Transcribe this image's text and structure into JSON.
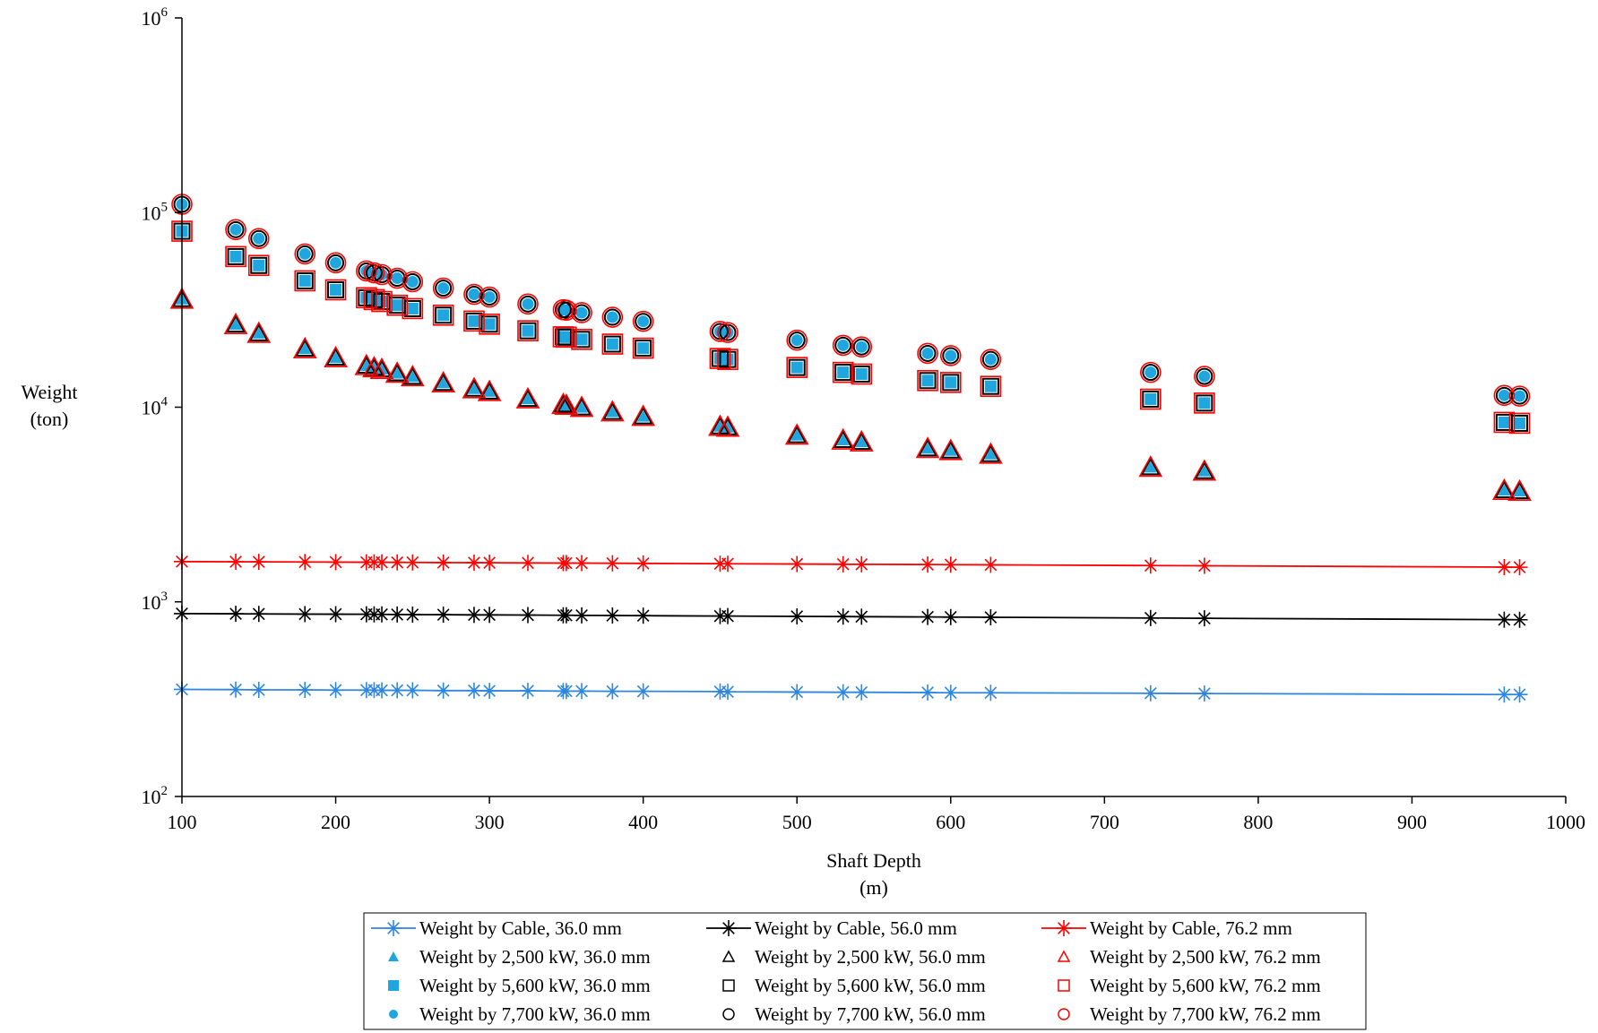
{
  "chart_data": {
    "type": "scatter",
    "xlabel_line1": "Shaft Depth",
    "xlabel_line2": "(m)",
    "ylabel_line1": "Weight",
    "ylabel_line2": "(ton)",
    "xlim": [
      100,
      1000
    ],
    "ylim": [
      100,
      1000000
    ],
    "y_scale": "log",
    "x_ticks": [
      "100",
      "200",
      "300",
      "400",
      "500",
      "600",
      "700",
      "800",
      "900",
      "1000"
    ],
    "y_ticks": [
      {
        "base": "10",
        "exp": "2"
      },
      {
        "base": "10",
        "exp": "3"
      },
      {
        "base": "10",
        "exp": "4"
      },
      {
        "base": "10",
        "exp": "5"
      },
      {
        "base": "10",
        "exp": "6"
      }
    ],
    "grid": false,
    "legend_position": "bottom",
    "x": [
      100,
      135,
      150,
      180,
      200,
      220,
      225,
      230,
      240,
      250,
      270,
      290,
      300,
      325,
      348,
      350,
      360,
      380,
      400,
      450,
      455,
      500,
      530,
      542,
      585,
      600,
      626,
      730,
      765,
      960,
      970
    ],
    "series": [
      {
        "name": "Weight by Cable, 36.0 mm",
        "kind": "line",
        "marker": "star",
        "color": "#2E86DE",
        "values": [
          355,
          354,
          353,
          353,
          352,
          352,
          352,
          351,
          351,
          351,
          350,
          350,
          349,
          349,
          348,
          348,
          348,
          347,
          347,
          346,
          345,
          344,
          343,
          343,
          342,
          341,
          341,
          339,
          338,
          334,
          334
        ]
      },
      {
        "name": "Weight by Cable, 56.0 mm",
        "kind": "line",
        "marker": "star",
        "color": "#000000",
        "values": [
          870,
          868,
          867,
          865,
          864,
          863,
          862,
          862,
          861,
          860,
          859,
          857,
          857,
          855,
          853,
          853,
          852,
          851,
          849,
          845,
          845,
          842,
          840,
          839,
          836,
          835,
          833,
          826,
          823,
          810,
          809
        ]
      },
      {
        "name": "Weight by Cable, 76.2 mm",
        "kind": "line",
        "marker": "star",
        "color": "#FF0000",
        "values": [
          1610,
          1607,
          1605,
          1602,
          1600,
          1597,
          1597,
          1596,
          1595,
          1594,
          1591,
          1589,
          1588,
          1585,
          1582,
          1582,
          1581,
          1578,
          1576,
          1570,
          1569,
          1564,
          1560,
          1559,
          1554,
          1552,
          1549,
          1536,
          1532,
          1508,
          1506
        ]
      },
      {
        "name": "Weight by 2,500 kW, 36.0 mm",
        "kind": "marker",
        "marker": "triangle-filled",
        "color": "#1FA6DE",
        "values": [
          35800,
          26500,
          23900,
          19900,
          17900,
          16300,
          15900,
          15600,
          14900,
          14300,
          13300,
          12400,
          12000,
          11000,
          10300,
          10200,
          9950,
          9430,
          8950,
          7950,
          7870,
          7160,
          6760,
          6610,
          6120,
          5970,
          5720,
          4900,
          4680,
          3730,
          3690
        ]
      },
      {
        "name": "Weight by 2,500 kW, 56.0 mm",
        "kind": "marker",
        "marker": "triangle-open",
        "color": "#000000",
        "values": [
          35800,
          26500,
          23900,
          19900,
          17900,
          16300,
          15900,
          15600,
          14900,
          14300,
          13300,
          12400,
          12000,
          11000,
          10300,
          10200,
          9950,
          9430,
          8950,
          7950,
          7870,
          7160,
          6760,
          6610,
          6120,
          5970,
          5720,
          4900,
          4680,
          3730,
          3690
        ]
      },
      {
        "name": "Weight by 2,500 kW, 76.2 mm",
        "kind": "marker",
        "marker": "triangle-open",
        "color": "#FF0000",
        "values": [
          35800,
          26500,
          23900,
          19900,
          17900,
          16300,
          15900,
          15600,
          14900,
          14300,
          13300,
          12400,
          12000,
          11000,
          10300,
          10200,
          9950,
          9430,
          8950,
          7950,
          7870,
          7160,
          6760,
          6610,
          6120,
          5970,
          5720,
          4900,
          4680,
          3730,
          3690
        ]
      },
      {
        "name": "Weight by 5,600 kW, 36.0 mm",
        "kind": "marker",
        "marker": "square-filled",
        "color": "#1FA6DE",
        "values": [
          80200,
          59400,
          53500,
          44600,
          40100,
          36500,
          35700,
          34900,
          33400,
          32100,
          29700,
          27700,
          26700,
          24700,
          23000,
          22900,
          22300,
          21100,
          20100,
          17800,
          17600,
          16000,
          15100,
          14800,
          13700,
          13400,
          12800,
          11000,
          10500,
          8360,
          8270
        ]
      },
      {
        "name": "Weight by 5,600 kW, 56.0 mm",
        "kind": "marker",
        "marker": "square-open",
        "color": "#000000",
        "values": [
          80200,
          59400,
          53500,
          44600,
          40100,
          36500,
          35700,
          34900,
          33400,
          32100,
          29700,
          27700,
          26700,
          24700,
          23000,
          22900,
          22300,
          21100,
          20100,
          17800,
          17600,
          16000,
          15100,
          14800,
          13700,
          13400,
          12800,
          11000,
          10500,
          8360,
          8270
        ]
      },
      {
        "name": "Weight by 5,600 kW, 76.2 mm",
        "kind": "marker",
        "marker": "square-open",
        "color": "#FF0000",
        "values": [
          80200,
          59400,
          53500,
          44600,
          40100,
          36500,
          35700,
          34900,
          33400,
          32100,
          29700,
          27700,
          26700,
          24700,
          23000,
          22900,
          22300,
          21100,
          20100,
          17800,
          17600,
          16000,
          15100,
          14800,
          13700,
          13400,
          12800,
          11000,
          10500,
          8360,
          8270
        ]
      },
      {
        "name": "Weight by 7,700 kW, 36.0 mm",
        "kind": "marker",
        "marker": "circle-filled",
        "color": "#1FA6DE",
        "values": [
          110300,
          81700,
          73500,
          61300,
          55200,
          50100,
          49000,
          48000,
          46000,
          44100,
          40900,
          38000,
          36800,
          33900,
          31700,
          31500,
          30600,
          29000,
          27600,
          24500,
          24200,
          22100,
          20800,
          20400,
          18900,
          18400,
          17600,
          15100,
          14400,
          11500,
          11400
        ]
      },
      {
        "name": "Weight by 7,700 kW, 56.0 mm",
        "kind": "marker",
        "marker": "circle-open",
        "color": "#000000",
        "values": [
          110300,
          81700,
          73500,
          61300,
          55200,
          50100,
          49000,
          48000,
          46000,
          44100,
          40900,
          38000,
          36800,
          33900,
          31700,
          31500,
          30600,
          29000,
          27600,
          24500,
          24200,
          22100,
          20800,
          20400,
          18900,
          18400,
          17600,
          15100,
          14400,
          11500,
          11400
        ]
      },
      {
        "name": "Weight by 7,700 kW, 76.2 mm",
        "kind": "marker",
        "marker": "circle-open",
        "color": "#FF0000",
        "values": [
          110300,
          81700,
          73500,
          61300,
          55200,
          50100,
          49000,
          48000,
          46000,
          44100,
          40900,
          38000,
          36800,
          33900,
          31700,
          31500,
          30600,
          29000,
          27600,
          24500,
          24200,
          22100,
          20800,
          20400,
          18900,
          18400,
          17600,
          15100,
          14400,
          11500,
          11400
        ]
      }
    ]
  }
}
